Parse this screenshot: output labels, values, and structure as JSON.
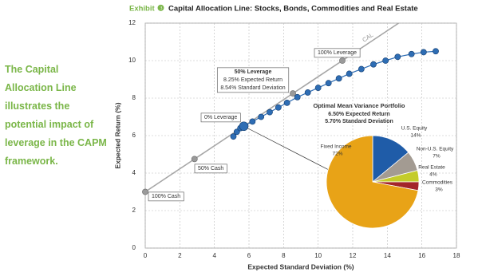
{
  "header": {
    "label": "Exhibit",
    "number": "❸",
    "title": "Capital Allocation Line: Stocks, Bonds, Commodities and Real Estate"
  },
  "sidebar": "The Capital Allocation Line illustrates the potential impact of leverage in the CAPM framework.",
  "chart_data": [
    {
      "type": "line",
      "x_label": "Expected Standard Deviation (%)",
      "y_label": "Expected Return (%)",
      "xlim": [
        0,
        18
      ],
      "ylim": [
        0,
        12
      ],
      "xticks": [
        0,
        2,
        4,
        6,
        8,
        10,
        12,
        14,
        16,
        18
      ],
      "yticks": [
        0,
        2,
        4,
        6,
        8,
        10,
        12
      ],
      "grid": true,
      "series": [
        {
          "name": "CAL",
          "color": "#a6a6a6",
          "x": [
            0,
            2.85,
            5.7,
            8.54,
            11.4
          ],
          "values": [
            3,
            4.75,
            6.5,
            8.25,
            10
          ]
        },
        {
          "color": "#2e6db4",
          "x": [
            5.1,
            5.3,
            5.5,
            5.7,
            6.2,
            6.7,
            7.2,
            7.7,
            8.2,
            8.8,
            9.4,
            10.0,
            10.6,
            11.2,
            11.8,
            12.5,
            13.2,
            13.9,
            14.6,
            15.4,
            16.1,
            16.8
          ],
          "values": [
            5.95,
            6.2,
            6.4,
            6.5,
            6.75,
            7.0,
            7.25,
            7.5,
            7.75,
            8.05,
            8.3,
            8.55,
            8.8,
            9.05,
            9.3,
            9.55,
            9.8,
            10.0,
            10.2,
            10.35,
            10.45,
            10.5
          ]
        }
      ],
      "annotations": [
        [
          "100% Cash"
        ],
        [
          "50% Cash"
        ],
        [
          "0% Leverage"
        ],
        [
          "50% Leverage",
          "8.25% Expected Return",
          "8.54% Standard Deviation"
        ],
        [
          "100% Leverage"
        ]
      ]
    },
    {
      "type": "pie",
      "title": "Optimal Mean Variance Portfolio",
      "annotations": [
        "6.50% Expected Return",
        "5.70% Standard Deviation"
      ],
      "categories": [
        "U.S. Equity",
        "Non-U.S. Equity",
        "Real Estate",
        "Commodities",
        "Fixed Income"
      ],
      "values": [
        14,
        7,
        4,
        3,
        72
      ],
      "value_labels": [
        "14%",
        "7%",
        "4%",
        "3%",
        "72%"
      ],
      "colors": [
        "#1f5ca8",
        "#a39b92",
        "#c4cc2b",
        "#a3262a",
        "#e8a317"
      ]
    }
  ]
}
